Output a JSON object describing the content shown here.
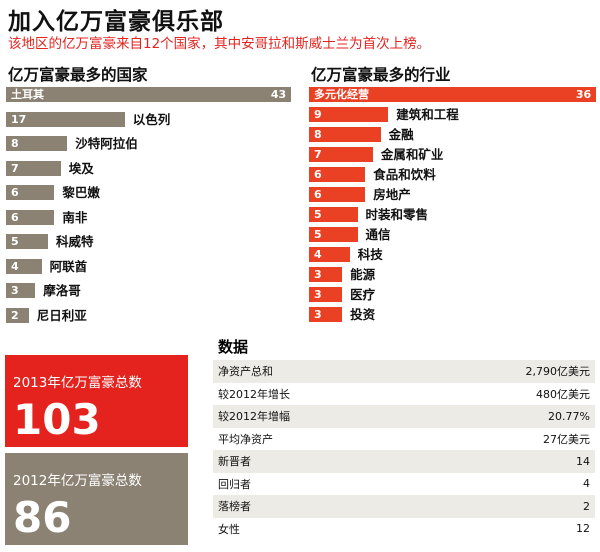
{
  "title": "加入亿万富豪俱乐部",
  "subtitle": "该地区的亿万富豪来自12个国家，其中安哥拉和斯威士兰为首次上榜。",
  "chart_data": [
    {
      "type": "bar",
      "title": "亿万富豪最多的国家",
      "color": "#8b8273",
      "categories": [
        "土耳其",
        "以色列",
        "沙特阿拉伯",
        "埃及",
        "黎巴嫩",
        "南非",
        "科威特",
        "阿联酋",
        "摩洛哥",
        "尼日利亚"
      ],
      "values": [
        43,
        17,
        8,
        7,
        6,
        6,
        5,
        4,
        3,
        2
      ]
    },
    {
      "type": "bar",
      "title": "亿万富豪最多的行业",
      "color": "#ea4125",
      "categories": [
        "多元化经营",
        "建筑和工程",
        "金融",
        "金属和矿业",
        "食品和饮料",
        "房地产",
        "时装和零售",
        "通信",
        "科技",
        "能源",
        "医疗",
        "投资"
      ],
      "values": [
        36,
        9,
        8,
        7,
        6,
        6,
        5,
        5,
        4,
        3,
        3,
        3
      ]
    }
  ],
  "totals": {
    "y2013_label": "2013年亿万富豪总数",
    "y2013_value": "103",
    "y2012_label": "2012年亿万富豪总数",
    "y2012_value": "86",
    "red": "#e4231f",
    "grey": "#8b8273"
  },
  "stats": {
    "title": "数据",
    "rows": [
      {
        "label": "净资产总和",
        "value": "2,790亿美元"
      },
      {
        "label": "较2012年增长",
        "value": "480亿美元"
      },
      {
        "label": "较2012年增幅",
        "value": "20.77%"
      },
      {
        "label": "平均净资产",
        "value": "27亿美元"
      },
      {
        "label": "新晋者",
        "value": "14"
      },
      {
        "label": "回归者",
        "value": "4"
      },
      {
        "label": "落榜者",
        "value": "2"
      },
      {
        "label": "女性",
        "value": "12"
      }
    ]
  }
}
